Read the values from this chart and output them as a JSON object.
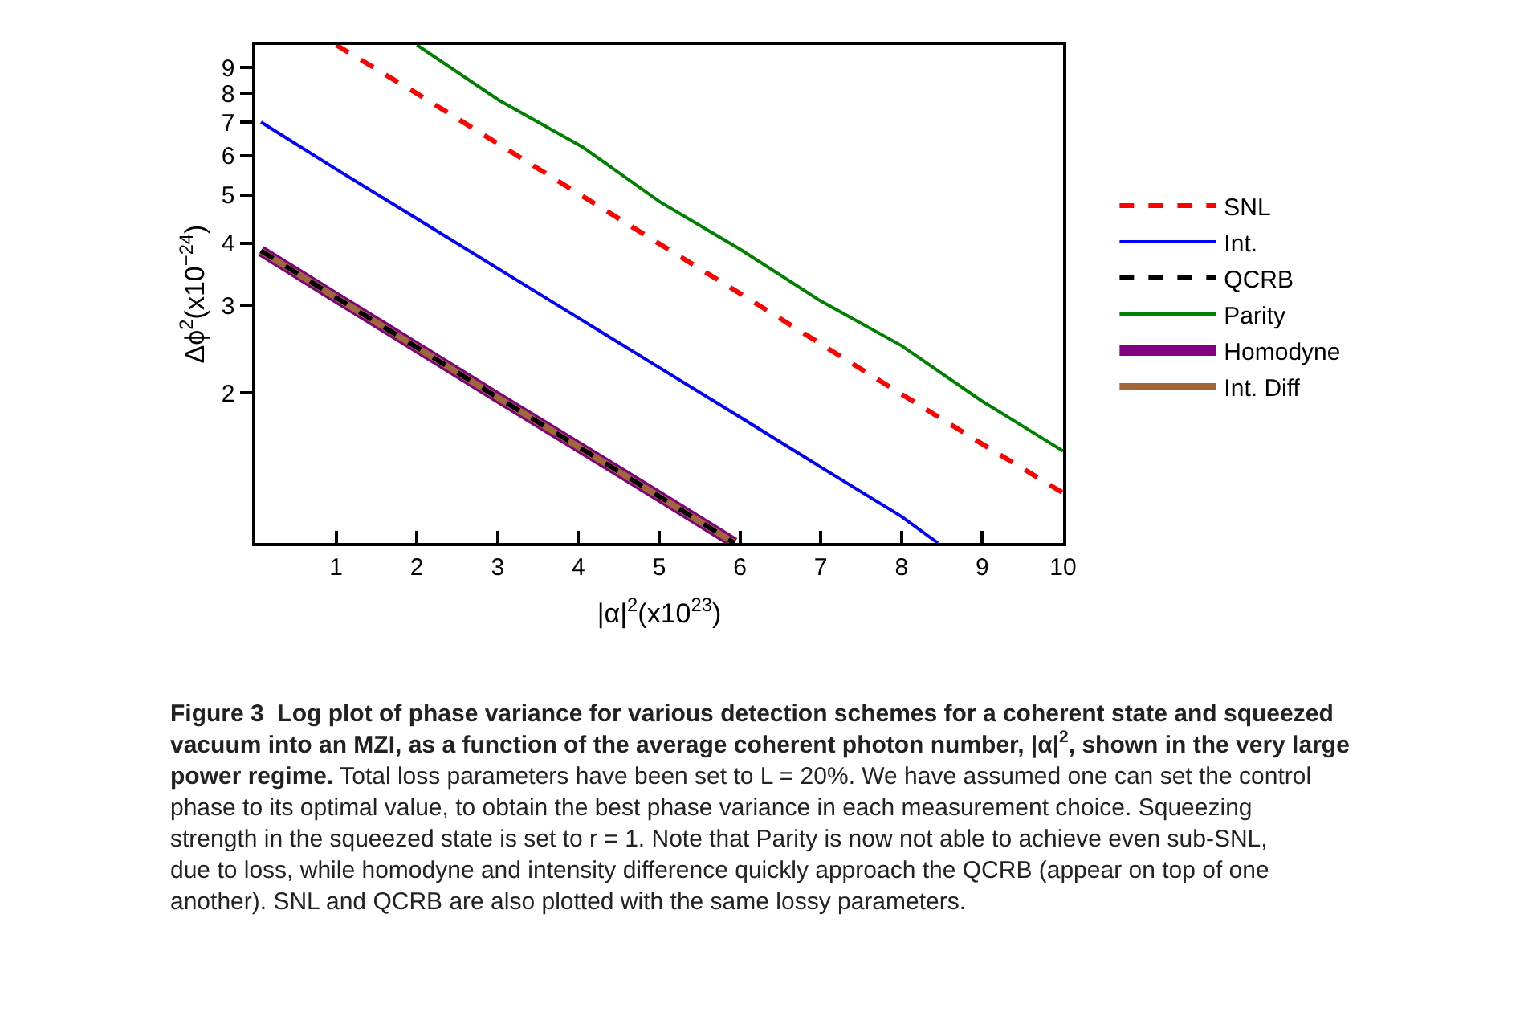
{
  "chart_data": {
    "type": "line",
    "xlabel": "|α|$^{2}$(x10$^{23}$)",
    "ylabel": "Δϕ$^{2}$(x10$^{−24}$)",
    "log": "y",
    "legend": "right",
    "marker": "none",
    "xlim": [
      0,
      10
    ],
    "xticks": [
      1,
      2,
      3,
      4,
      5,
      6,
      7,
      8,
      9,
      10
    ],
    "ylim": [
      1,
      10
    ],
    "yticks": [
      2,
      3,
      4,
      5,
      6,
      7,
      8,
      9
    ],
    "series": [
      {
        "name": "SNL",
        "color": "#ff0000",
        "line_style": "dashed",
        "x": [
          1,
          2,
          3,
          4,
          5,
          6,
          7,
          8,
          9,
          10
        ],
        "values": [
          10.0,
          7.99,
          6.34,
          5.03,
          3.99,
          3.17,
          2.51,
          1.99,
          1.58,
          1.26
        ]
      },
      {
        "name": "Int.",
        "color": "#0000ff",
        "line_style": "solid",
        "x": [
          0.07,
          1,
          2,
          3,
          4,
          5,
          6,
          7,
          8,
          8.45
        ],
        "values": [
          7.0,
          5.63,
          4.48,
          3.56,
          2.83,
          2.25,
          1.79,
          1.42,
          1.13,
          1.0
        ]
      },
      {
        "name": "QCRB",
        "color": "#000000",
        "line_style": "dashed",
        "x": [
          0.07,
          1,
          2,
          3,
          4,
          5,
          5.93
        ],
        "values": [
          3.86,
          3.11,
          2.47,
          1.96,
          1.56,
          1.24,
          1.0
        ]
      },
      {
        "name": "Parity",
        "color": "#008000",
        "line_style": "solid",
        "x": [
          2.0,
          3.02,
          4.05,
          5.01,
          6.0,
          7.0,
          8.0,
          8.99,
          10
        ],
        "values": [
          10.0,
          7.74,
          6.24,
          4.84,
          3.89,
          3.06,
          2.49,
          1.93,
          1.53
        ]
      },
      {
        "name": "Homodyne",
        "color": "#800080",
        "line_style": "solid",
        "x": [
          0.07,
          1,
          2,
          3,
          4,
          5,
          5.93
        ],
        "values": [
          3.86,
          3.11,
          2.47,
          1.96,
          1.56,
          1.24,
          1.0
        ]
      },
      {
        "name": "Int. Diff",
        "color": "#a0673a",
        "line_style": "solid",
        "x": [
          0.07,
          1,
          2,
          3,
          4,
          5,
          5.93
        ],
        "values": [
          3.86,
          3.11,
          2.47,
          1.96,
          1.56,
          1.24,
          1.0
        ]
      }
    ],
    "annotations": [
      "Figure 3  Log plot of phase variance for various detection schemes for a coherent state and squeezed vacuum into an MZI, as a function of the average coherent photon number, |α|$^{2}$, shown in the very large power regime.",
      "Total loss parameters have been set to L = 20%. We have assumed one can set the control phase to its optimal value, to obtain the best phase variance in each measurement choice. Squeezing strength in the squeezed state is set to r = 1. Note that Parity is now not able to achieve even sub-SNL, due to loss, while homodyne and intensity difference quickly approach the QCRB (appear on top of one another). SNL and QCRB are also plotted with the same lossy parameters."
    ]
  }
}
